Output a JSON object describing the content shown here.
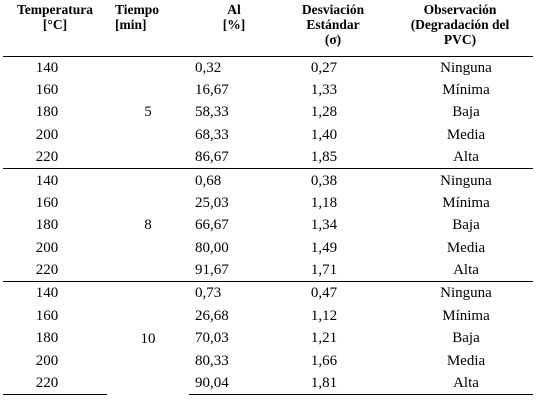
{
  "headers": {
    "temperature": [
      "Temperatura",
      "[°C]"
    ],
    "time": [
      "Tiempo",
      "[min]"
    ],
    "al": [
      "Al",
      "[%]"
    ],
    "deviation": [
      "Desviación",
      "Estándar",
      "(σ)"
    ],
    "observation": [
      "Observación",
      "(Degradación del",
      "PVC)"
    ]
  },
  "groups": [
    {
      "time": "5",
      "rows": [
        {
          "temperature": "140",
          "al": "0,32",
          "deviation": "0,27",
          "observation": "Ninguna"
        },
        {
          "temperature": "160",
          "al": "16,67",
          "deviation": "1,33",
          "observation": "Mínima"
        },
        {
          "temperature": "180",
          "al": "58,33",
          "deviation": "1,28",
          "observation": "Baja"
        },
        {
          "temperature": "200",
          "al": "68,33",
          "deviation": "1,40",
          "observation": "Media"
        },
        {
          "temperature": "220",
          "al": "86,67",
          "deviation": "1,85",
          "observation": "Alta"
        }
      ]
    },
    {
      "time": "8",
      "rows": [
        {
          "temperature": "140",
          "al": "0,68",
          "deviation": "0,38",
          "observation": "Ninguna"
        },
        {
          "temperature": "160",
          "al": "25,03",
          "deviation": "1,18",
          "observation": "Mínima"
        },
        {
          "temperature": "180",
          "al": "66,67",
          "deviation": "1,34",
          "observation": "Baja"
        },
        {
          "temperature": "200",
          "al": "80,00",
          "deviation": "1,49",
          "observation": "Media"
        },
        {
          "temperature": "220",
          "al": "91,67",
          "deviation": "1,71",
          "observation": "Alta"
        }
      ]
    },
    {
      "time": "10",
      "rows": [
        {
          "temperature": "140",
          "al": "0,73",
          "deviation": "0,47",
          "observation": "Ninguna"
        },
        {
          "temperature": "160",
          "al": "26,68",
          "deviation": "1,12",
          "observation": "Mínima"
        },
        {
          "temperature": "180",
          "al": "70,03",
          "deviation": "1,21",
          "observation": "Baja"
        },
        {
          "temperature": "200",
          "al": "80,33",
          "deviation": "1,66",
          "observation": "Media"
        },
        {
          "temperature": "220",
          "al": "90,04",
          "deviation": "1,81",
          "observation": "Alta"
        }
      ]
    }
  ]
}
